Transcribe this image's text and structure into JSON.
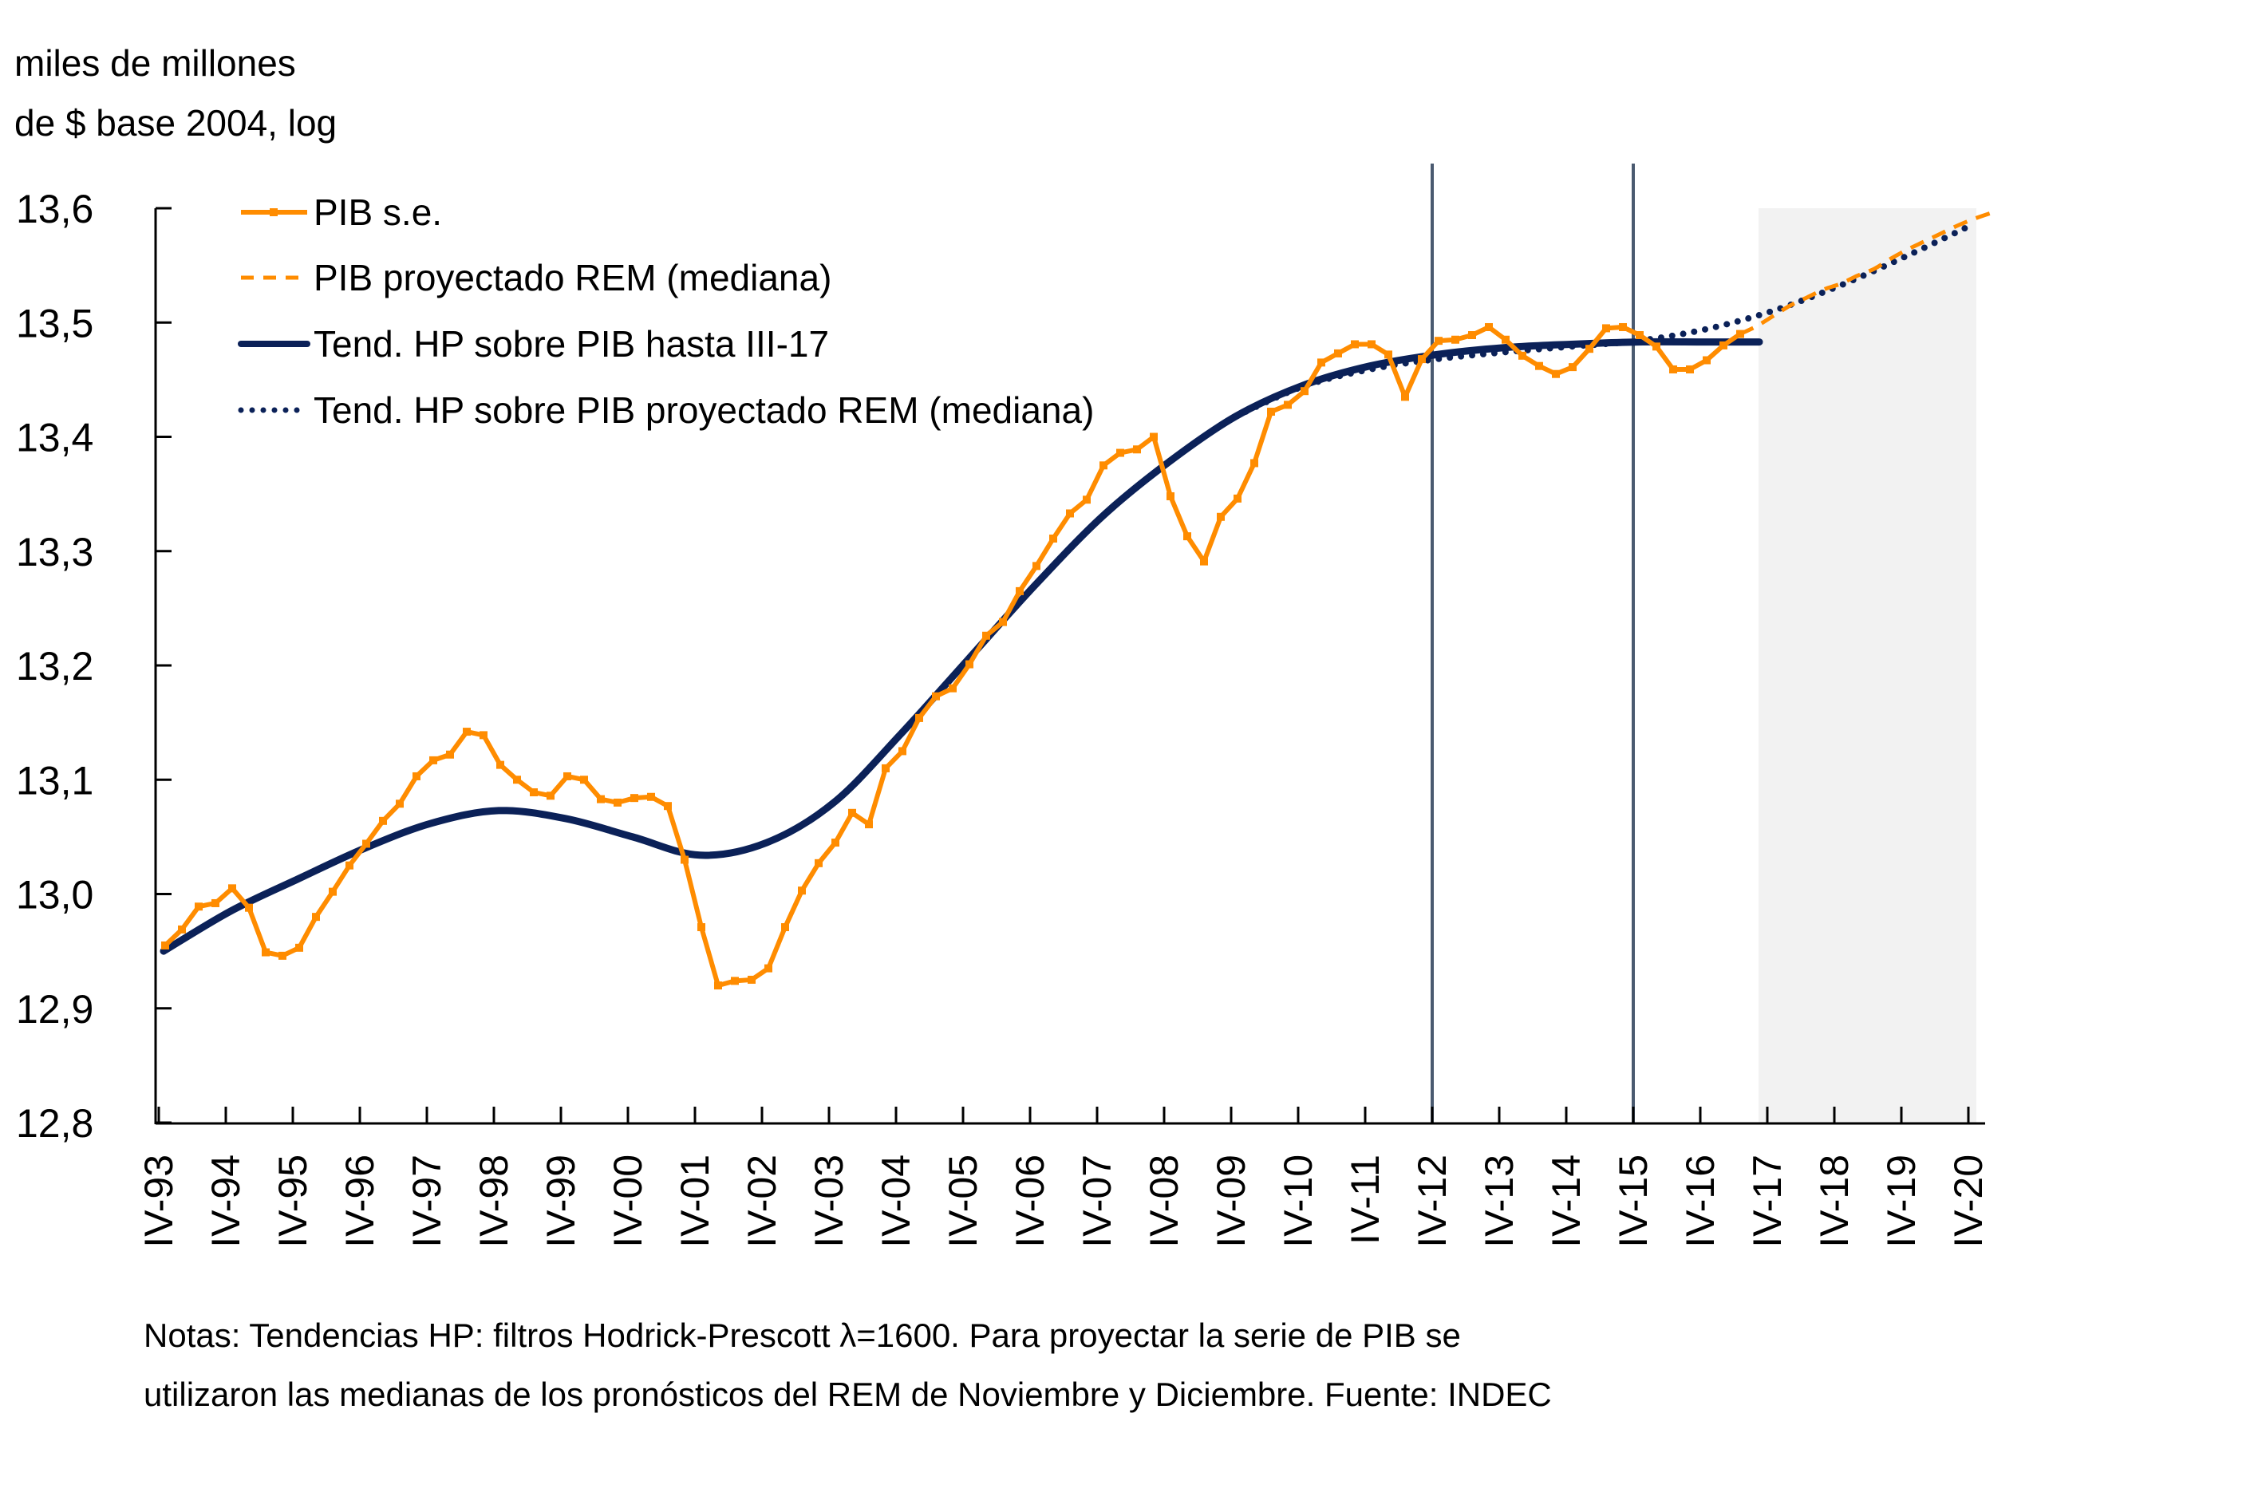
{
  "chart_data": {
    "type": "line",
    "title": "",
    "ylabel_lines": [
      "miles de millones",
      "de $ base 2004, log"
    ],
    "xlabel": "",
    "ylim": [
      12.8,
      13.6
    ],
    "yticks": [
      12.8,
      12.9,
      13.0,
      13.1,
      13.2,
      13.3,
      13.4,
      13.5,
      13.6
    ],
    "ytick_labels": [
      "12,8",
      "12,9",
      "13,0",
      "13,1",
      "13,2",
      "13,3",
      "13,4",
      "13,5",
      "13,6"
    ],
    "x_axis": {
      "unit": "quarter",
      "start": "IV-93",
      "end": "IV-20",
      "tick_labels": [
        "IV-93",
        "IV-94",
        "IV-95",
        "IV-96",
        "IV-97",
        "IV-98",
        "IV-99",
        "IV-00",
        "IV-01",
        "IV-02",
        "IV-03",
        "IV-04",
        "IV-05",
        "IV-06",
        "IV-07",
        "IV-08",
        "IV-09",
        "IV-10",
        "IV-11",
        "IV-12",
        "IV-13",
        "IV-14",
        "IV-15",
        "IV-16",
        "IV-17",
        "IV-18",
        "IV-19",
        "IV-20"
      ]
    },
    "grid": false,
    "vertical_markers": [
      "IV-12",
      "IV-15"
    ],
    "shaded_region": {
      "from": "IV-16 + 3 quarters (approx. III-17)",
      "to": "IV-20",
      "color": "#f2f2f2"
    },
    "legend": {
      "placement": "top-left",
      "entries": [
        {
          "label": "PIB s.e.",
          "style": "solid-marker",
          "color": "#ff8c00"
        },
        {
          "label": "PIB proyectado REM (mediana)",
          "style": "dashed",
          "color": "#ff8c00"
        },
        {
          "label": "Tend. HP sobre PIB hasta III-17",
          "style": "solid",
          "color": "#0b2158"
        },
        {
          "label": "Tend. HP sobre PIB proyectado REM (mediana)",
          "style": "dotted",
          "color": "#0b2158"
        }
      ]
    },
    "series": [
      {
        "name": "PIB s.e.",
        "start_quarter_index": 0,
        "values": [
          12.955,
          12.969,
          12.989,
          12.992,
          13.005,
          12.988,
          12.949,
          12.946,
          12.953,
          12.98,
          13.002,
          13.025,
          13.044,
          13.064,
          13.079,
          13.103,
          13.117,
          13.122,
          13.142,
          13.139,
          13.113,
          13.1,
          13.089,
          13.086,
          13.103,
          13.1,
          13.083,
          13.08,
          13.084,
          13.085,
          13.077,
          13.03,
          12.971,
          12.92,
          12.924,
          12.925,
          12.935,
          12.971,
          13.003,
          13.027,
          13.045,
          13.071,
          13.061,
          13.11,
          13.125,
          13.154,
          13.173,
          13.18,
          13.201,
          13.226,
          13.238,
          13.265,
          13.287,
          13.311,
          13.333,
          13.345,
          13.375,
          13.386,
          13.389,
          13.4,
          13.348,
          13.313,
          13.291,
          13.33,
          13.346,
          13.377,
          13.422,
          13.428,
          13.44,
          13.465,
          13.473,
          13.481,
          13.481,
          13.472,
          13.435,
          13.468,
          13.484,
          13.485,
          13.489,
          13.496,
          13.485,
          13.471,
          13.462,
          13.455,
          13.461,
          13.477,
          13.495,
          13.496,
          13.489,
          13.479,
          13.459,
          13.459,
          13.467,
          13.48,
          13.49
        ]
      },
      {
        "name": "PIB proyectado REM (mediana)",
        "start_quarter_index": 94,
        "values": [
          13.49,
          13.497,
          13.506,
          13.515,
          13.522,
          13.529,
          13.534,
          13.541,
          13.547,
          13.556,
          13.564,
          13.571,
          13.578,
          13.585,
          13.591,
          13.596
        ]
      },
      {
        "name": "Tend. HP sobre PIB hasta III-17",
        "start_quarter_index": 0,
        "yearly_points_q4": {
          "IV-93": 12.95,
          "IV-94": 12.985,
          "IV-95": 13.013,
          "IV-96": 13.04,
          "IV-97": 13.062,
          "IV-98": 13.073,
          "IV-99": 13.066,
          "IV-00": 13.05,
          "IV-01": 13.034,
          "IV-02": 13.045,
          "IV-03": 13.08,
          "IV-04": 13.14,
          "IV-05": 13.205,
          "IV-06": 13.27,
          "IV-07": 13.33,
          "IV-08": 13.378,
          "IV-09": 13.418,
          "IV-10": 13.445,
          "IV-11": 13.462,
          "IV-12": 13.472,
          "IV-13": 13.478,
          "IV-14": 13.481,
          "IV-15": 13.483,
          "IV-16": 13.483,
          "III-17": 13.483
        }
      },
      {
        "name": "Tend. HP sobre PIB proyectado REM (mediana)",
        "yearly_points_q4": {
          "IV-09": 13.418,
          "IV-10": 13.444,
          "IV-11": 13.459,
          "IV-12": 13.468,
          "IV-13": 13.474,
          "IV-14": 13.479,
          "IV-15": 13.484,
          "IV-16": 13.494,
          "IV-17": 13.51,
          "IV-18": 13.532,
          "IV-19": 13.558,
          "IV-20": 13.586
        }
      }
    ],
    "note_lines": [
      "Notas: Tendencias HP: filtros Hodrick-Prescott λ=1600. Para proyectar la serie de PIB se",
      "utilizaron las medianas de los pronósticos del REM de Noviembre y Diciembre. Fuente: INDEC"
    ]
  },
  "colors": {
    "pib": "#ff8c00",
    "trend": "#0b2158",
    "marker_line": "#4a5a70",
    "shade": "#f2f2f2",
    "axis": "#000000"
  }
}
